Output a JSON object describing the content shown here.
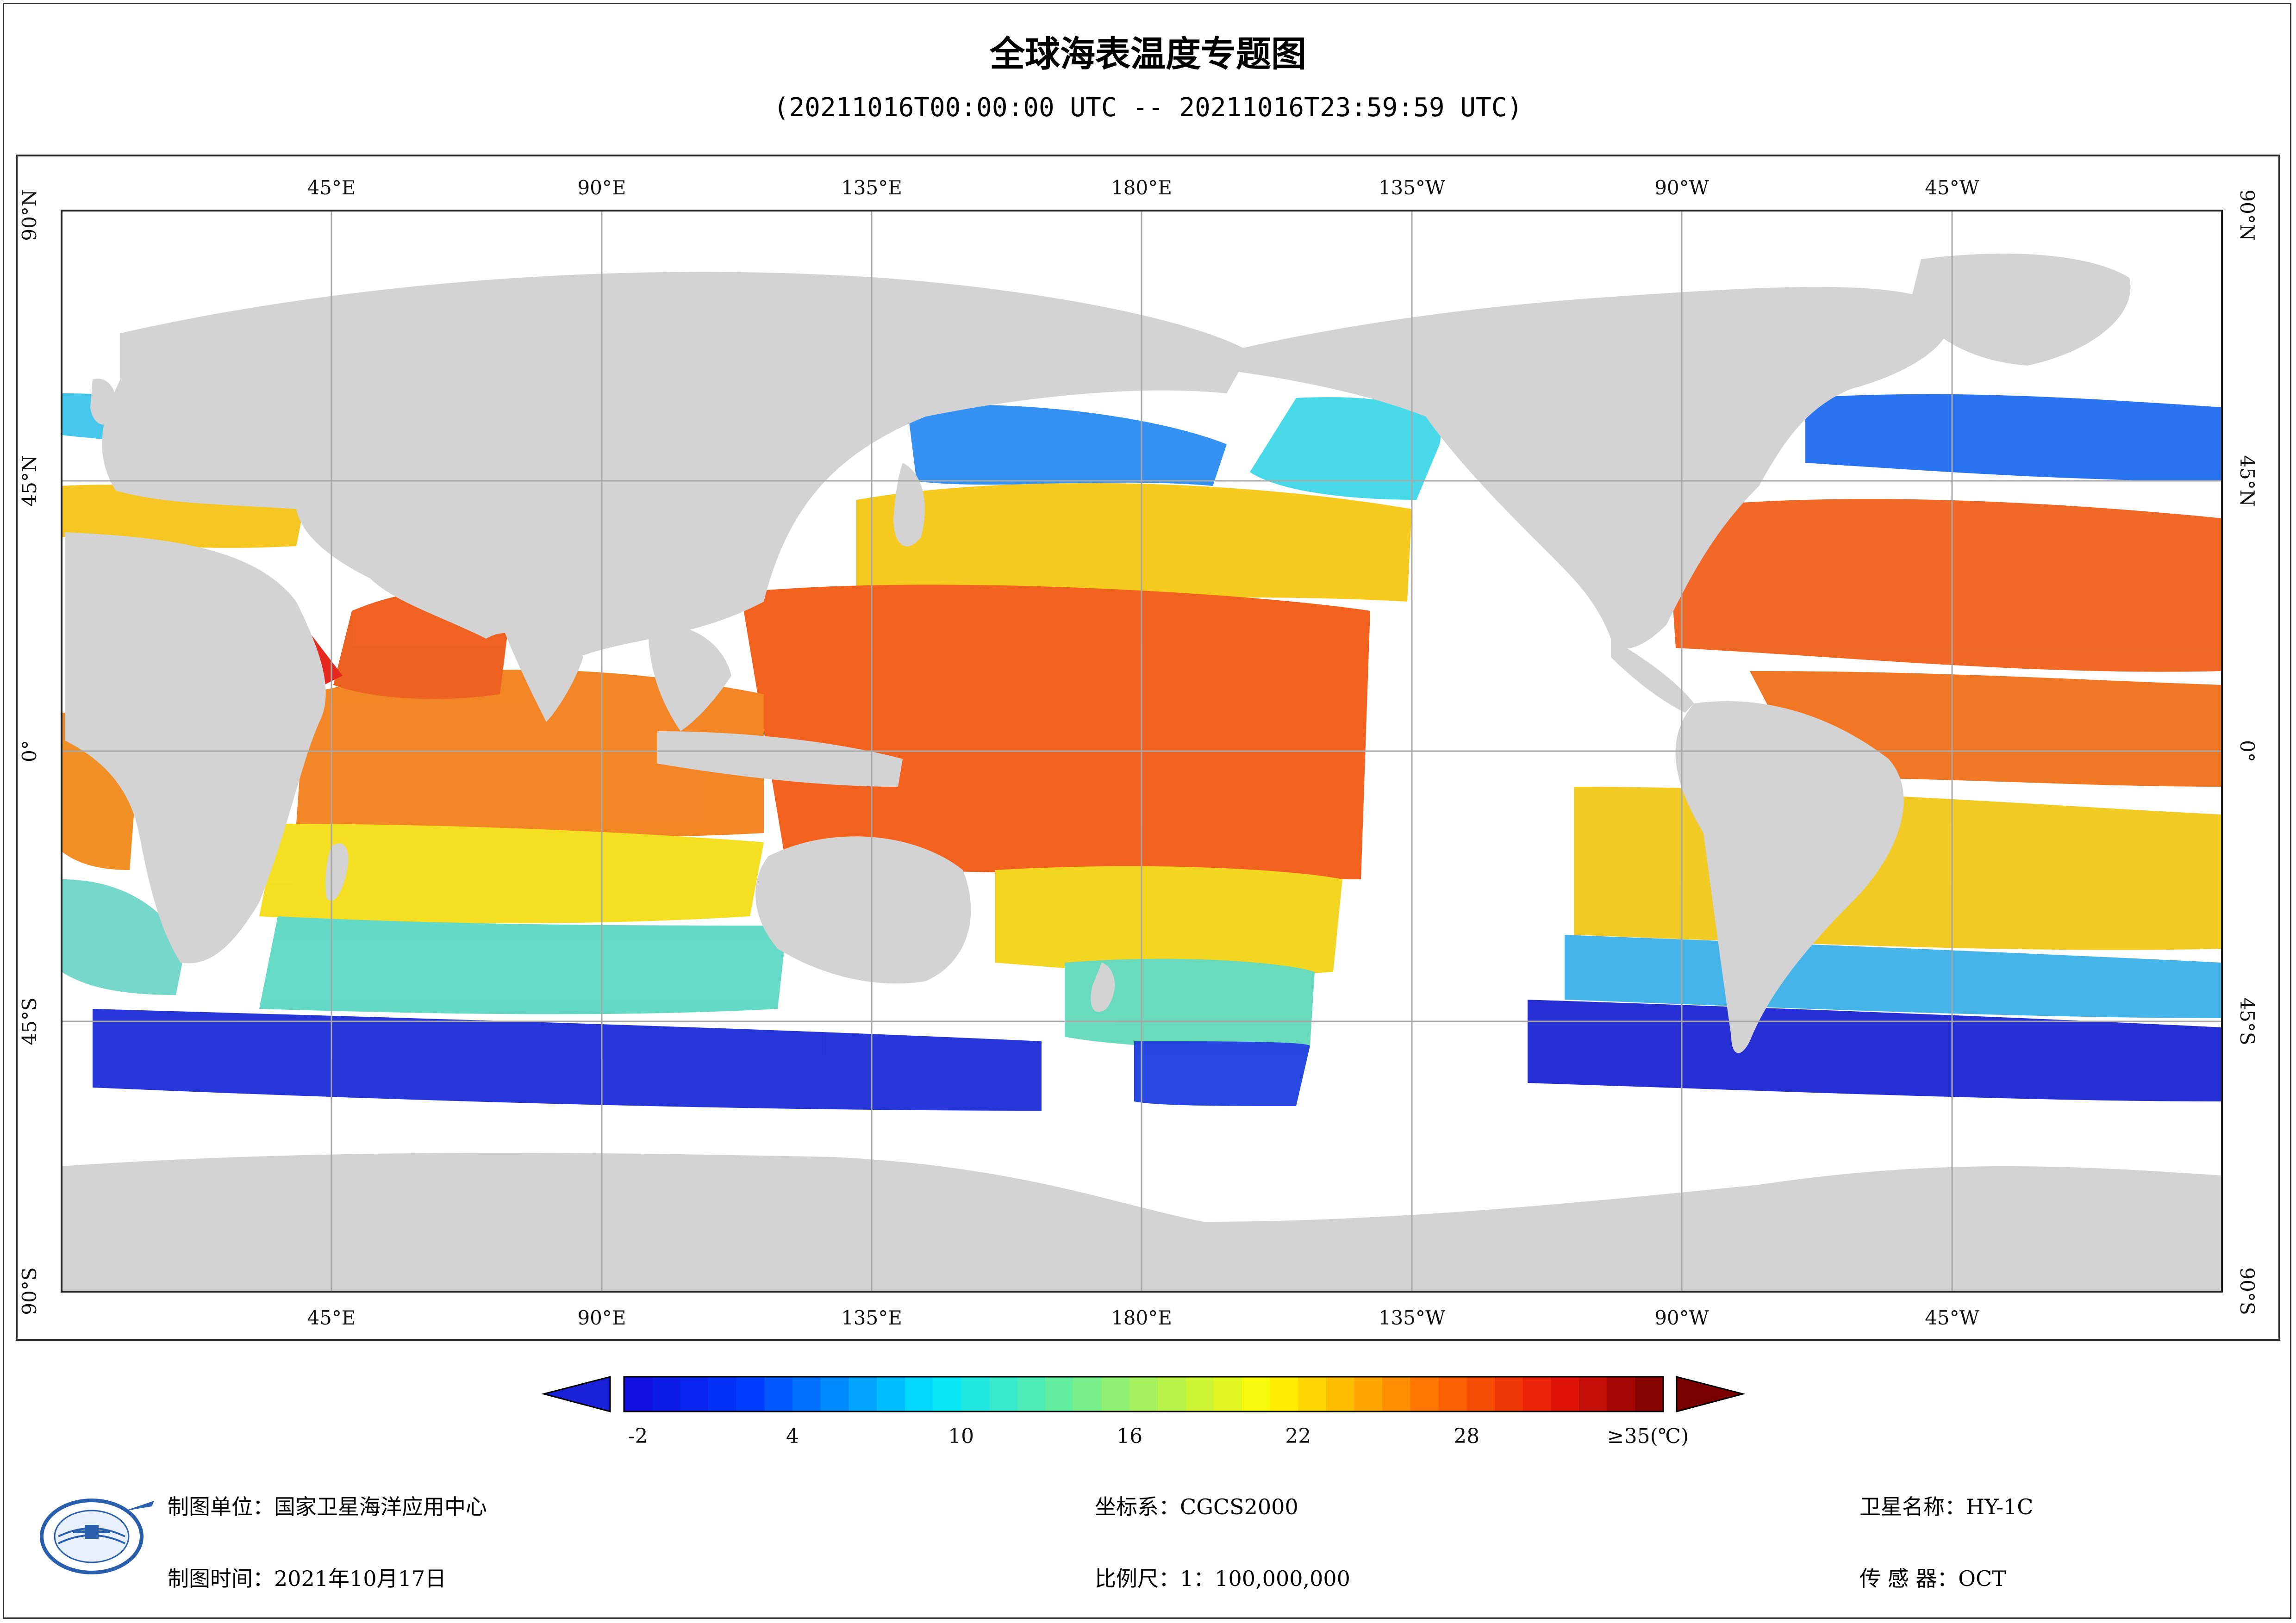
{
  "title": "全球海表温度专题图",
  "subtitle": "(20211016T00:00:00 UTC -- 20211016T23:59:59 UTC)",
  "graticule": {
    "top_lon": [
      "45°E",
      "90°E",
      "135°E",
      "180°E",
      "135°W",
      "90°W",
      "45°W"
    ],
    "bottom_lon": [
      "45°E",
      "90°E",
      "135°E",
      "180°E",
      "135°W",
      "90°W",
      "45°W"
    ],
    "left_lat": [
      "90°N",
      "45°N",
      "0°",
      "45°S",
      "90°S"
    ],
    "right_lat": [
      "90°N",
      "45°N",
      "0°",
      "45°S",
      "90°S"
    ]
  },
  "colorbar": {
    "ticks": [
      "-2",
      "4",
      "10",
      "16",
      "22",
      "28",
      "≥35(℃)"
    ],
    "tick_values": [
      -2,
      4,
      10,
      16,
      22,
      28,
      35
    ],
    "range": [
      -2,
      35
    ],
    "under_color": "#1a22d8",
    "over_color": "#7a0000"
  },
  "footer": {
    "unit": "制图单位：国家卫星海洋应用中心",
    "time": "制图时间：2021年10月17日",
    "crs": "坐标系：CGCS2000",
    "scale": "比例尺：1：100,000,000",
    "satellite": "卫星名称：HY-1C",
    "sensor": "传 感 器：OCT"
  },
  "colors": {
    "land": "#d3d3d3",
    "ocean_nodata": "#ffffff",
    "grid": "#a8a8a8"
  }
}
